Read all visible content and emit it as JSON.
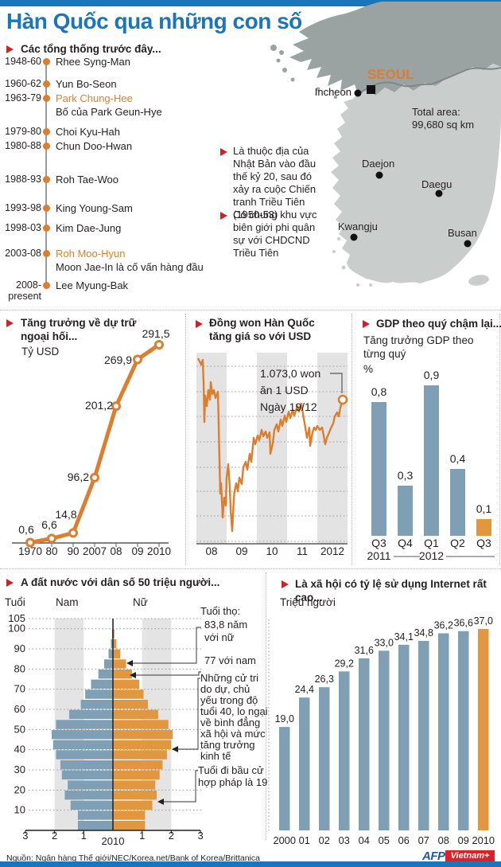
{
  "palette": {
    "blue": "#1a76bb",
    "orange": "#dd7e2f",
    "bar_blue": "#7f9fb5",
    "bar_orange": "#e0973f",
    "red_bullet": "#cf2127",
    "map_north": "#9aa2a2",
    "map_south": "#c9cdcc",
    "band_gray": "#e3e3e3",
    "afp_blue": "#2456a4",
    "brand_red": "#e21e26"
  },
  "header": {
    "title": "Hàn Quốc qua những con số"
  },
  "presidents": {
    "heading": "Các tổng thống trước đây...",
    "entries": [
      {
        "years": "1948-60",
        "name": "Rhee Syng-Man"
      },
      {
        "years": "1960-62",
        "name": "Yun Bo-Seon"
      },
      {
        "years": "1963-79",
        "name": "Park Chung-Hee",
        "highlight": true,
        "note": "Bố của Park Geun-Hye"
      },
      {
        "years": "1979-80",
        "name": "Choi Kyu-Hah"
      },
      {
        "years": "1980-88",
        "name": "Chun Doo-Hwan"
      },
      {
        "years": "1988-93",
        "name": "Roh Tae-Woo"
      },
      {
        "years": "1993-98",
        "name": "King Young-Sam"
      },
      {
        "years": "1998-03",
        "name": "Kim Dae-Jung"
      },
      {
        "years": "2003-08",
        "name": "Roh Moo-Hyun",
        "highlight": true,
        "note": "Moon Jae-In là cố vấn hàng đầu"
      },
      {
        "years": "2008-",
        "years2": "present",
        "name": "Lee Myung-Bak"
      }
    ]
  },
  "map": {
    "seoul": "SEOUL",
    "cities": [
      "Incheon",
      "Daejon",
      "Daegu",
      "Kwangju",
      "Busan"
    ],
    "total_area_l1": "Total area:",
    "total_area_l2": "99,680 sq km",
    "facts": [
      "Là thuộc địa của Nhật Bản vào đầu thế kỷ 20, sau đó xảy ra cuộc Chiến tranh Triều Tiên (1950-53)",
      "Có chung khu vực biên giới phi quân sự với CHDCND Triều Tiên"
    ]
  },
  "chart_data": [
    {
      "id": "foreign-reserves",
      "type": "line",
      "title": "Tăng trưởng về dự trữ ngoại hối...",
      "ylabel": "Tỷ USD",
      "categories": [
        "1970",
        "80",
        "90",
        "2007",
        "08",
        "09",
        "2010"
      ],
      "values": [
        0.6,
        6.6,
        14.8,
        96.2,
        201.2,
        269.9,
        291.5
      ],
      "labels": [
        "0,6",
        "6,6",
        "14,8",
        "96,2",
        "201,2",
        "269,9",
        "291,5"
      ],
      "ylim": [
        0,
        300
      ]
    },
    {
      "id": "won-vs-usd",
      "type": "line",
      "title": "Đồng won Hàn Quốc tăng giá so với USD",
      "categories": [
        "08",
        "09",
        "10",
        "11",
        "2012"
      ],
      "annotation": {
        "l1": "1.073,0 won",
        "l2": "ăn 1 USD",
        "l3": "Ngày 19/12"
      },
      "last_value_label": "1.073,0",
      "path_points": [
        [
          2,
          7
        ],
        [
          6,
          15
        ],
        [
          8,
          9
        ],
        [
          9,
          37
        ],
        [
          10,
          87
        ],
        [
          11,
          54
        ],
        [
          13,
          67
        ],
        [
          15,
          47
        ],
        [
          17,
          59
        ],
        [
          18,
          37
        ],
        [
          20,
          52
        ],
        [
          22,
          47
        ],
        [
          24,
          57
        ],
        [
          27,
          49
        ],
        [
          28,
          90
        ],
        [
          29,
          137
        ],
        [
          30,
          177
        ],
        [
          31,
          164
        ],
        [
          32,
          184
        ],
        [
          33,
          207
        ],
        [
          35,
          182
        ],
        [
          37,
          192
        ],
        [
          38,
          157
        ],
        [
          40,
          140
        ],
        [
          42,
          170
        ],
        [
          43,
          197
        ],
        [
          45,
          224
        ],
        [
          47,
          184
        ],
        [
          48,
          174
        ],
        [
          50,
          164
        ],
        [
          52,
          174
        ],
        [
          54,
          157
        ],
        [
          57,
          165
        ],
        [
          59,
          144
        ],
        [
          62,
          137
        ],
        [
          64,
          147
        ],
        [
          67,
          127
        ],
        [
          69,
          137
        ],
        [
          72,
          107
        ],
        [
          74,
          115
        ],
        [
          77,
          104
        ],
        [
          79,
          110
        ],
        [
          82,
          97
        ],
        [
          84,
          105
        ],
        [
          87,
          99
        ],
        [
          89,
          107
        ],
        [
          92,
          100
        ],
        [
          93,
          127
        ],
        [
          96,
          114
        ],
        [
          98,
          97
        ],
        [
          101,
          90
        ],
        [
          103,
          99
        ],
        [
          106,
          84
        ],
        [
          108,
          92
        ],
        [
          111,
          79
        ],
        [
          113,
          87
        ],
        [
          116,
          74
        ],
        [
          118,
          82
        ],
        [
          121,
          72
        ],
        [
          123,
          79
        ],
        [
          127,
          67
        ],
        [
          129,
          74
        ],
        [
          132,
          64
        ],
        [
          134,
          77
        ],
        [
          137,
          94
        ],
        [
          139,
          107
        ],
        [
          142,
          94
        ],
        [
          143,
          117
        ],
        [
          146,
          100
        ],
        [
          148,
          94
        ],
        [
          150,
          97
        ],
        [
          152,
          92
        ],
        [
          155,
          97
        ],
        [
          158,
          94
        ],
        [
          160,
          104
        ],
        [
          162,
          115
        ],
        [
          164,
          107
        ],
        [
          167,
          100
        ],
        [
          169,
          95
        ],
        [
          172,
          89
        ],
        [
          174,
          80
        ],
        [
          177,
          75
        ],
        [
          179,
          80
        ],
        [
          181,
          69
        ],
        [
          183,
          62
        ],
        [
          184,
          59
        ]
      ]
    },
    {
      "id": "gdp-quarterly",
      "type": "bar",
      "title": "GDP theo quý chậm lại...",
      "subtitle": "Tăng trưởng GDP theo từng quý",
      "unit": "%",
      "categories": [
        "Q3",
        "Q4",
        "Q1",
        "Q2",
        "Q3"
      ],
      "values": [
        0.8,
        0.3,
        0.9,
        0.4,
        0.1
      ],
      "labels": [
        "0,8",
        "0,3",
        "0,9",
        "0,4",
        "0,1"
      ],
      "years": [
        {
          "label": "2011",
          "under": 0
        },
        {
          "label": "2012",
          "under": 2
        }
      ],
      "highlight_index": 4
    },
    {
      "id": "population-pyramid",
      "type": "pyramid",
      "title": "A đất nước với dân số 50 triệu người...",
      "age_axis_label": "Tuổi",
      "left_label": "Nam",
      "right_label": "Nữ",
      "year_label": "2010",
      "age_ticks": [
        105,
        100,
        90,
        80,
        70,
        60,
        50,
        40,
        30,
        20,
        10
      ],
      "x_ticks": [
        "3",
        "2",
        "1",
        "1",
        "2",
        "3"
      ],
      "bin_age_start": [
        0,
        5,
        10,
        15,
        20,
        25,
        30,
        35,
        40,
        45,
        50,
        55,
        60,
        65,
        70,
        75,
        80,
        85,
        90,
        95,
        100
      ],
      "male": [
        1.2,
        1.2,
        1.45,
        1.65,
        1.55,
        1.75,
        1.8,
        1.95,
        2.05,
        2.1,
        1.95,
        1.5,
        1.1,
        0.95,
        0.75,
        0.5,
        0.3,
        0.15,
        0.07,
        0.03,
        0.01
      ],
      "female": [
        1.1,
        1.1,
        1.35,
        1.5,
        1.45,
        1.6,
        1.7,
        1.85,
        2.0,
        2.05,
        1.9,
        1.55,
        1.2,
        1.05,
        0.9,
        0.65,
        0.45,
        0.25,
        0.12,
        0.05,
        0.02
      ],
      "annotations": {
        "life_title": "Tuổi thọ:",
        "life_female": "83,8 năm với nữ",
        "life_male": "77 với nam",
        "voters": "Những cử tri do dự, chủ yếu trong độ tuổi 40, lo ngại về bình đẳng xã hội và mức tăng trưởng kinh tế",
        "voting_age": "Tuổi đi bầu cử hợp pháp là 19"
      }
    },
    {
      "id": "internet-users",
      "type": "bar",
      "title": "Là xã hội có tỷ lệ sử dụng Internet rất cao...",
      "unit": "Triệu người",
      "categories": [
        "2000",
        "01",
        "02",
        "03",
        "04",
        "05",
        "06",
        "07",
        "08",
        "09",
        "2010"
      ],
      "values": [
        19.0,
        24.4,
        26.3,
        29.2,
        31.6,
        33.0,
        34.1,
        34.8,
        36.2,
        36.6,
        37.0
      ],
      "labels": [
        "19,0",
        "24,4",
        "26,3",
        "29,2",
        "31,6",
        "33,0",
        "34,1",
        "34,8",
        "36,2",
        "36,6",
        "37,0"
      ],
      "highlight_index": 10
    }
  ],
  "footer": {
    "source": "Nguồn: Ngân hàng Thế giới/NEC/Korea.net/Bank of Korea/Brittanica",
    "afp": "AFP",
    "brand": "Vietnam+"
  }
}
